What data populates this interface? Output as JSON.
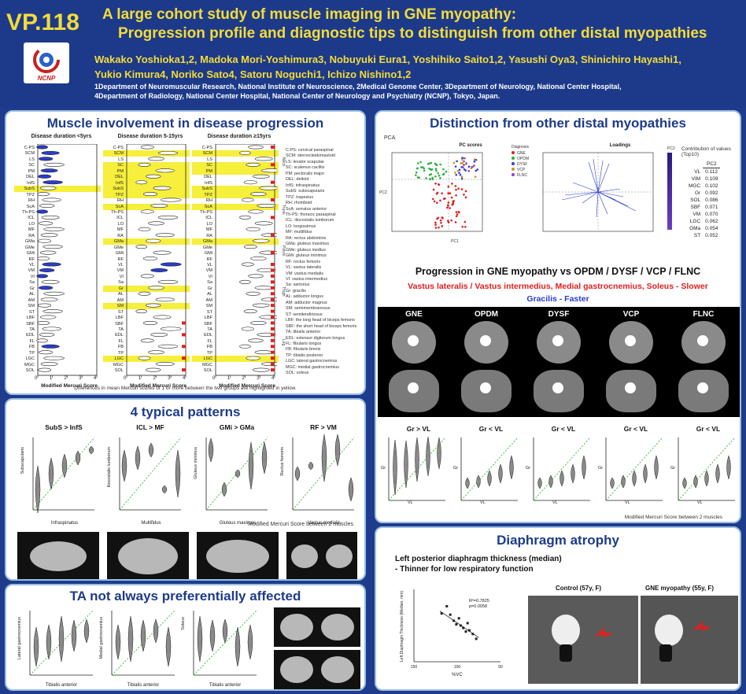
{
  "header": {
    "id": "VP.118",
    "title_line1": "A large cohort study of muscle imaging in GNE myopathy:",
    "title_line2": "Progression profile and diagnostic tips to distinguish from other distal myopathies",
    "authors_line1": "Wakako Yoshioka1,2, Madoka Mori-Yoshimura3, Nobuyuki Eura1, Yoshihiko Saito1,2, Yasushi Oya3, Shinichiro Hayashi1,",
    "authors_line2": "Yukio Kimura4, Noriko Sato4, Satoru Noguchi1, Ichizo Nishino1,2",
    "affil_line1": "1Department of Neuromuscular Research, National Institute of Neuroscience, 2Medical Genome Center, 3Department of Neurology, National Center Hospital,",
    "affil_line2": "4Department of Radiology, National Center Hospital, National Center of Neurology and Psychiatry (NCNP), Tokyo, Japan.",
    "logo_text": "NCNP"
  },
  "p1": {
    "title": "Muscle involvement in disease progression",
    "col_titles": [
      "Disease duration <5yrs",
      "Disease duration 5-15yrs",
      "Disease duration ≥15yrs"
    ],
    "muscles": [
      "C-PS",
      "SCM",
      "LS",
      "SC",
      "PM",
      "DEL",
      "InfS",
      "SubS",
      "TPZ",
      "RH",
      "ScA",
      "Th-PS",
      "ICL",
      "LO",
      "MF",
      "RA",
      "GMa",
      "GMe",
      "GMi",
      "RF",
      "VL",
      "VM",
      "VI",
      "Sa",
      "Gr",
      "AL",
      "AM",
      "SM",
      "ST",
      "LBF",
      "SBF",
      "TA",
      "EDL",
      "FL",
      "FB",
      "TP",
      "LGC",
      "MGC",
      "SOL"
    ],
    "xlabel": "Modified Mercuri Score",
    "ticks": [
      "0",
      "1",
      "2",
      "3",
      "4"
    ],
    "regions": [
      "Neck",
      "Trunk",
      "Pelvis",
      "Thigh",
      "Leg"
    ],
    "legend": [
      "C-PS: cervical paraspinal",
      "SCM: sternocleidomastoid",
      "LS: levator scapulae",
      "SC: scalenus caclitis",
      "PM: pectoralis major",
      "DEL: deltoid",
      "InfS: infraspinatus",
      "SubS: subscapularis",
      "TPZ: trapezius",
      "RH: rhomboid",
      "ScA: serratus anterior",
      "Th-PS: thoracic paraspinal",
      "ICL: iliocostalis lumborum",
      "LO: longissimus",
      "MF: multifidus",
      "RA: rectus abdominis",
      "GMa: gluteus maximus",
      "GMe: gluteus medius",
      "GMi: gluteus minimus",
      "RF: rectus femoris",
      "VL: vastus lateralis",
      "VM: vastus medialis",
      "VI: vastus intermedius",
      "Sa: sartorius",
      "Gr: gracilis",
      "AL: adductor longus",
      "AM: adductor magnus",
      "SM: semimembranosus",
      "ST: semitendinosus",
      "LBF: the long head of biceps femoris",
      "SBF: the short head of biceps femoris",
      "TA: tibialis anterior",
      "EDL: extensor digitorum longus",
      "FL: fibularis longus",
      "FB: fibularis brevis",
      "TP: tibialis posterior",
      "LGC: lateral gastrocnemius",
      "MGC: medial gastrocnemius",
      "SOL: soleus"
    ],
    "footnote": "Differences in mean Mercuri scores of 1 or more between the two groups are highlighted in yellow."
  },
  "p2": {
    "title": "4 typical patterns",
    "charts": [
      {
        "title": "SubS > InfS",
        "xlabel": "Infraspinatus",
        "ylabel": "Subscapularis"
      },
      {
        "title": "ICL > MF",
        "xlabel": "Multifidus",
        "ylabel": "Iliocostalis lumborum"
      },
      {
        "title": "GMi > GMa",
        "xlabel": "Gluteus maximus",
        "ylabel": "Gluteus minimus"
      },
      {
        "title": "RF > VM",
        "xlabel": "Vastus medialis",
        "ylabel": "Rectus femoris"
      }
    ],
    "caption": "Modified Mercuri Score between 2 muscles"
  },
  "p3": {
    "title": "TA not always preferentially affected",
    "charts": [
      {
        "xlabel": "Tibialis anterior",
        "ylabel": "Lateral gastrocnemius"
      },
      {
        "xlabel": "Tibialis anterior",
        "ylabel": "Medial gastrocnemius"
      },
      {
        "xlabel": "Tibialis anterior",
        "ylabel": "Soleus"
      }
    ]
  },
  "p4": {
    "title": "Distinction from other distal myopathies",
    "pca_label": "PCA",
    "scores_title": "PC scores",
    "loadings_title": "Loadings",
    "diagnosis_label": "Diagnosis",
    "diagnosis": [
      "GNE",
      "OPDM",
      "DYSF",
      "VCP",
      "FLNC"
    ],
    "pc_xlabel": "PC1",
    "pc_ylabel": "PC2",
    "pc2_label": "PC2",
    "contrib_title": "Contribution of values (Top10)",
    "contrib_header": "PC2",
    "contrib": [
      {
        "m": "VL",
        "v": "0.112"
      },
      {
        "m": "VIM",
        "v": "0.109"
      },
      {
        "m": "MGC",
        "v": "0.102"
      },
      {
        "m": "Gr",
        "v": "0.092"
      },
      {
        "m": "SOL",
        "v": "0.086"
      },
      {
        "m": "SBF",
        "v": "0.071"
      },
      {
        "m": "VM",
        "v": "0.070"
      },
      {
        "m": "LGC",
        "v": "0.062"
      },
      {
        "m": "GMa",
        "v": "0.054"
      },
      {
        "m": "ST",
        "v": "0.052"
      }
    ],
    "progression_title": "Progression in GNE myopathy vs OPDM / DYSF / VCP / FLNC",
    "slower_line": "Vastus lateralis / Vastus intermedius, Medial gastrocnemius, Soleus -  Slower",
    "faster_line": "Gracilis - Faster",
    "groups": [
      "GNE",
      "OPDM",
      "DYSF",
      "VCP",
      "FLNC"
    ],
    "comparisons": [
      "Gr > VL",
      "Gr < VL",
      "Gr < VL",
      "Gr < VL",
      "Gr < VL"
    ],
    "comp_xlabel": "VL",
    "comp_ylabel": "Gr",
    "caption": "Modified Mercuri Score between 2 muscles"
  },
  "p5": {
    "title": "Diaphragm atrophy",
    "line1": "Left posterior diaphragm thickness (median)",
    "line2": "- Thinner for low respiratory function",
    "r2": "R²=0.7825",
    "p": "p=0.0058",
    "xlabel": "%VC",
    "ylabel": "Left Diaphragm Thickness (Median, mm)",
    "xticks": [
      "150",
      "100",
      "50"
    ],
    "control_label": "Control (57y, F)",
    "gne_label": "GNE myopathy (55y, F)",
    "chart_data": {
      "type": "scatter",
      "x": [
        112,
        108,
        104,
        101,
        98,
        96,
        93,
        90,
        88,
        86,
        82,
        78,
        118
      ],
      "y": [
        4.6,
        3.9,
        3.4,
        3.1,
        3.6,
        3.0,
        2.8,
        2.5,
        3.2,
        2.6,
        2.3,
        1.9,
        4.0
      ],
      "xlim": [
        150,
        50
      ],
      "xlabel": "%VC",
      "ylabel": "Left Diaphragm Thickness (Median, mm)"
    }
  },
  "colors": {
    "header_bg": "#1d3a8a",
    "title_yellow": "#f3dc3a",
    "panel_title": "#1d3b8a",
    "highlight": "#f6ef3c",
    "red": "#e02020",
    "blue": "#2a3cd0"
  }
}
